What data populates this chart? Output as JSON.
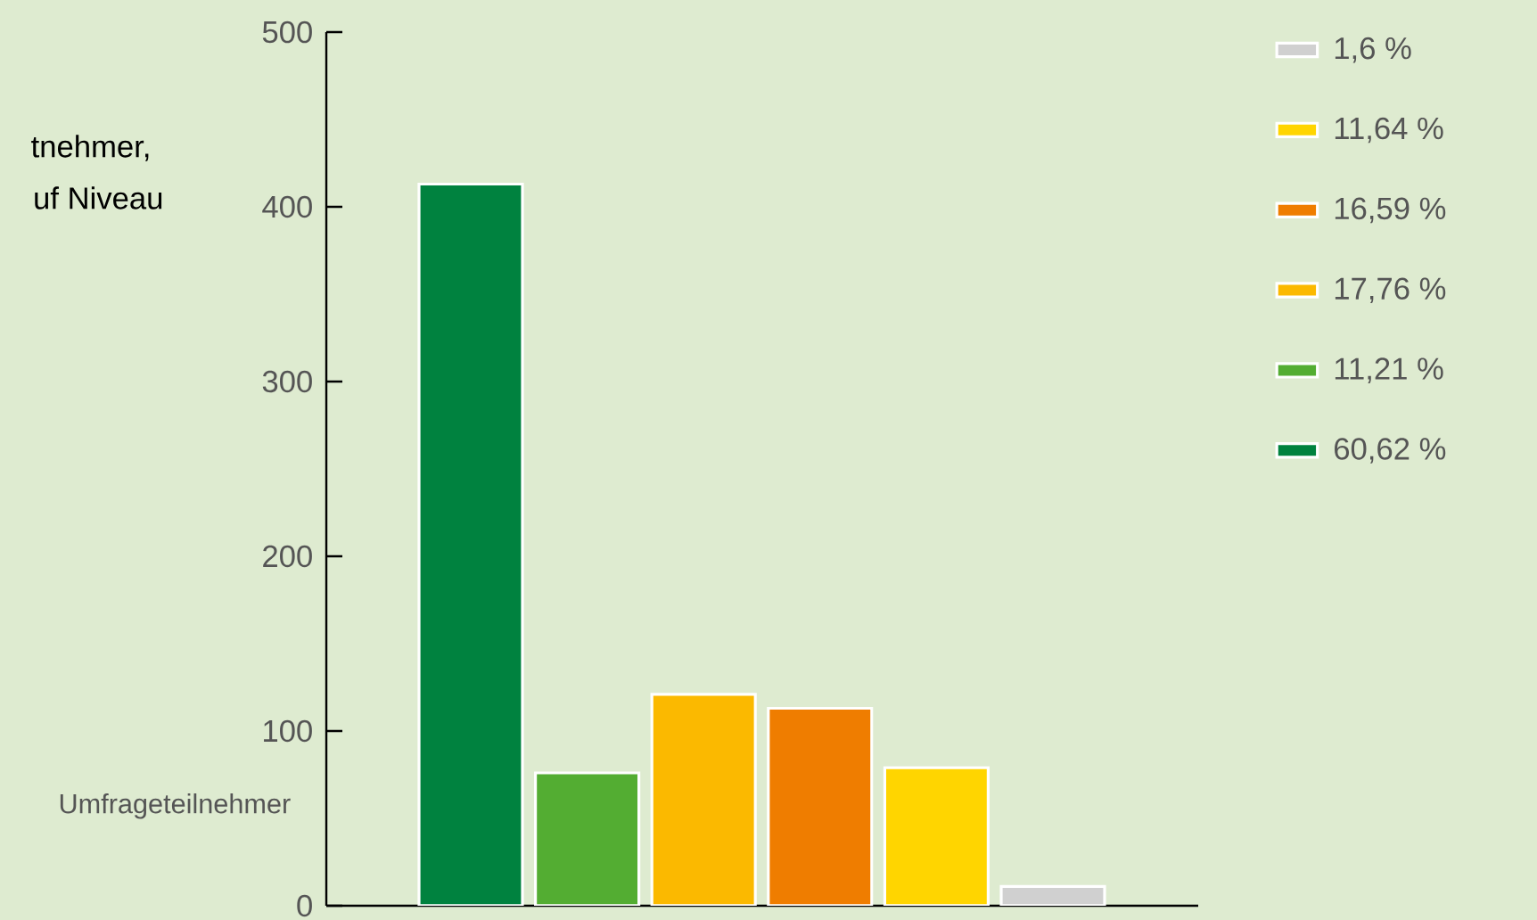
{
  "chart_data": {
    "type": "bar",
    "ylabel": "Umfrageteilnehmer",
    "annotations": [
      "tnehmer,",
      "uf Niveau"
    ],
    "categories": [
      null,
      null,
      null,
      null,
      null,
      null
    ],
    "series": [
      {
        "name": "60,62 %",
        "color": "#00823f",
        "values": [
          413,
          null,
          null,
          null,
          null,
          null
        ]
      },
      {
        "name": "11,21 %",
        "color": "#53ad32",
        "values": [
          null,
          76,
          null,
          null,
          null,
          null
        ]
      },
      {
        "name": "17,76 %",
        "color": "#fbb900",
        "values": [
          null,
          null,
          121,
          null,
          null,
          null
        ]
      },
      {
        "name": "16,59 %",
        "color": "#ef7d00",
        "values": [
          null,
          null,
          null,
          113,
          null,
          null
        ]
      },
      {
        "name": "11,64 %",
        "color": "#ffd500",
        "values": [
          null,
          null,
          null,
          null,
          79,
          null
        ]
      },
      {
        "name": "1,6 %",
        "color": "#d0d0d0",
        "values": [
          null,
          null,
          null,
          null,
          null,
          11
        ]
      }
    ],
    "ylim": [
      0,
      500
    ],
    "yticks": [
      0,
      100,
      200,
      300,
      400,
      500
    ],
    "legend": "right",
    "tick_labels": "y",
    "grid": false
  }
}
